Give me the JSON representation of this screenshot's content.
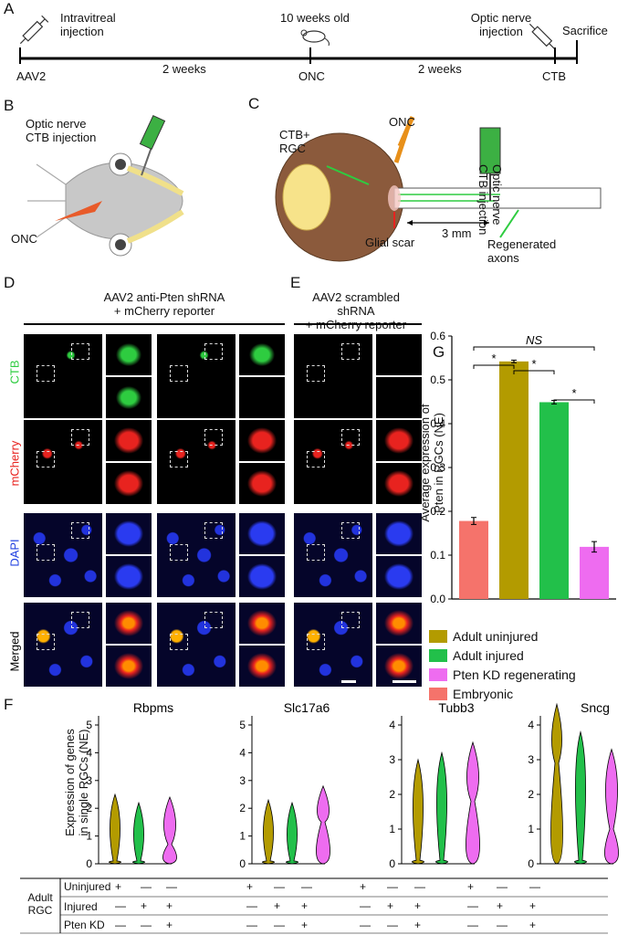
{
  "panels": {
    "A": "A",
    "B": "B",
    "C": "C",
    "D": "D",
    "E": "E",
    "F": "F",
    "G": "G"
  },
  "timeline": {
    "intravitreal": "Intravitreal\ninjection",
    "aav2": "AAV2",
    "two_weeks_1": "2 weeks",
    "ten_weeks": "10 weeks old",
    "onc": "ONC",
    "two_weeks_2": "2 weeks",
    "optic_nerve_injection": "Optic nerve\ninjection",
    "ctb": "CTB",
    "sacrifice": "Sacrifice"
  },
  "panel_b": {
    "title": "Optic nerve\nCTB injection",
    "onc": "ONC"
  },
  "panel_c": {
    "ctb_rgc": "CTB+\nRGC",
    "onc": "ONC",
    "vertical": "Optic nerve\nCTB injection",
    "glial": "Glial scar",
    "dist": "3 mm",
    "regen": "Regenerated\naxons"
  },
  "panel_d": {
    "title1": "AAV2 anti-Pten shRNA",
    "title2": "+ mCherry reporter"
  },
  "panel_e": {
    "title1": "AAV2 scrambled shRNA",
    "title2": "+ mCherry reporter"
  },
  "rows": [
    "CTB",
    "mCherry",
    "DAPI",
    "Merged"
  ],
  "colors": {
    "ctb": "#2ecc40",
    "mcherry": "#e8231f",
    "dapi": "#1f3fe0",
    "gold": "#b39b00",
    "green": "#22c04a",
    "pink": "#ee6cf0",
    "salmon": "#f5736b"
  },
  "chart_data": {
    "type": "bar",
    "categories": [
      "Embryonic",
      "Adult uninjured",
      "Adult injured",
      "Pten KD regenerating"
    ],
    "values": [
      0.178,
      0.542,
      0.449,
      0.119
    ],
    "errors": [
      0.008,
      0.003,
      0.004,
      0.012
    ],
    "ylabel": "Average expression of\nPten in RGCs (NE)",
    "ylim": [
      0,
      0.6
    ],
    "yticks": [
      "0.0",
      "0.1",
      "0.2",
      "0.3",
      "0.4",
      "0.5",
      "0.6"
    ],
    "significance": [
      "*",
      "*",
      "*",
      "NS"
    ],
    "legend": [
      "Adult uninjured",
      "Adult injured",
      "Pten KD regenerating",
      "Embryonic"
    ],
    "legend_placement": "bottom"
  },
  "violin_data": {
    "ylabel_1": "Expression of genes",
    "ylabel_2": "in single RGCs (NE)",
    "genes": [
      "Rbpms",
      "Slc17a6",
      "Tubb3",
      "Sncg"
    ],
    "ticks": [
      [
        "0",
        "1",
        "2",
        "3",
        "4",
        "5"
      ],
      [
        "0",
        "1",
        "2",
        "3",
        "4",
        "5"
      ],
      [
        "0",
        "1",
        "2",
        "3",
        "4"
      ],
      [
        "0",
        "1",
        "2",
        "3",
        "4"
      ]
    ],
    "groups": [
      "Adult uninjured",
      "Adult injured",
      "Pten KD"
    ]
  },
  "table": {
    "group": "Adult\nRGC",
    "rows": [
      "Uninjured",
      "Injured",
      "Pten KD"
    ],
    "marks": [
      [
        "+",
        "—",
        "—"
      ],
      [
        "—",
        "+",
        "+"
      ],
      [
        "—",
        "—",
        "+"
      ]
    ]
  }
}
